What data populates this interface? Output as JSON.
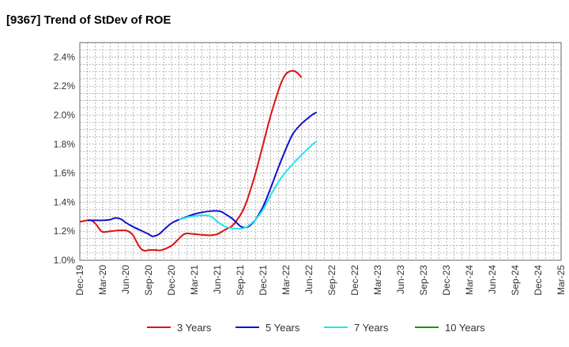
{
  "chart_data": {
    "type": "line",
    "title": "[9367]  Trend of StDev of ROE",
    "xlabel": "",
    "ylabel": "",
    "ylim": [
      1.0,
      2.5
    ],
    "y_ticks": [
      1.0,
      1.2,
      1.4,
      1.6,
      1.8,
      2.0,
      2.2,
      2.4
    ],
    "y_tick_labels": [
      "1.0%",
      "1.2%",
      "1.4%",
      "1.6%",
      "1.8%",
      "2.0%",
      "2.2%",
      "2.4%"
    ],
    "x_tick_labels": [
      "Dec-19",
      "Mar-20",
      "Jun-20",
      "Sep-20",
      "Dec-20",
      "Mar-21",
      "Jun-21",
      "Sep-21",
      "Dec-21",
      "Mar-22",
      "Jun-22",
      "Sep-22",
      "Dec-22",
      "Mar-23",
      "Jun-23",
      "Sep-23",
      "Dec-23",
      "Mar-24",
      "Jun-24",
      "Sep-24",
      "Dec-24",
      "Mar-25"
    ],
    "grid": true,
    "legend_position": "bottom",
    "series": [
      {
        "name": "3 Years",
        "color": "#dd1111",
        "points": [
          [
            0,
            1.265
          ],
          [
            1,
            1.275
          ],
          [
            1.5,
            1.275
          ],
          [
            2,
            1.255
          ],
          [
            2.5,
            1.22
          ],
          [
            3,
            1.195
          ],
          [
            4,
            1.2
          ],
          [
            5,
            1.205
          ],
          [
            6,
            1.205
          ],
          [
            6.5,
            1.195
          ],
          [
            7,
            1.17
          ],
          [
            7.5,
            1.12
          ],
          [
            8,
            1.08
          ],
          [
            8.5,
            1.065
          ],
          [
            9,
            1.07
          ],
          [
            10,
            1.07
          ],
          [
            10.5,
            1.068
          ],
          [
            11,
            1.075
          ],
          [
            12,
            1.1
          ],
          [
            13,
            1.15
          ],
          [
            13.5,
            1.175
          ],
          [
            14,
            1.185
          ],
          [
            15,
            1.18
          ],
          [
            16,
            1.175
          ],
          [
            17,
            1.172
          ],
          [
            18,
            1.18
          ],
          [
            19,
            1.21
          ],
          [
            20,
            1.24
          ],
          [
            21,
            1.31
          ],
          [
            21.5,
            1.36
          ],
          [
            22,
            1.43
          ],
          [
            23,
            1.6
          ],
          [
            24,
            1.8
          ],
          [
            25,
            2.0
          ],
          [
            26,
            2.17
          ],
          [
            26.5,
            2.24
          ],
          [
            27,
            2.285
          ],
          [
            27.5,
            2.302
          ],
          [
            28,
            2.305
          ],
          [
            28.5,
            2.29
          ],
          [
            29,
            2.26
          ]
        ]
      },
      {
        "name": "5 Years",
        "color": "#1111cc",
        "points": [
          [
            1,
            1.275
          ],
          [
            2,
            1.275
          ],
          [
            3,
            1.275
          ],
          [
            4,
            1.28
          ],
          [
            4.5,
            1.29
          ],
          [
            5,
            1.29
          ],
          [
            5.5,
            1.28
          ],
          [
            6,
            1.26
          ],
          [
            7,
            1.23
          ],
          [
            8,
            1.205
          ],
          [
            9,
            1.18
          ],
          [
            9.5,
            1.165
          ],
          [
            10,
            1.17
          ],
          [
            10.5,
            1.185
          ],
          [
            11,
            1.21
          ],
          [
            12,
            1.255
          ],
          [
            13,
            1.28
          ],
          [
            14,
            1.3
          ],
          [
            15,
            1.318
          ],
          [
            16,
            1.33
          ],
          [
            17,
            1.338
          ],
          [
            18,
            1.34
          ],
          [
            18.5,
            1.335
          ],
          [
            19,
            1.32
          ],
          [
            20,
            1.285
          ],
          [
            21,
            1.235
          ],
          [
            21.5,
            1.225
          ],
          [
            22,
            1.23
          ],
          [
            22.5,
            1.25
          ],
          [
            23,
            1.28
          ],
          [
            24,
            1.37
          ],
          [
            25,
            1.5
          ],
          [
            26,
            1.64
          ],
          [
            27,
            1.77
          ],
          [
            27.5,
            1.83
          ],
          [
            28,
            1.88
          ],
          [
            29,
            1.94
          ],
          [
            30,
            1.985
          ],
          [
            30.5,
            2.005
          ],
          [
            31,
            2.02
          ]
        ]
      },
      {
        "name": "7 Years",
        "color": "#22e5f2",
        "points": [
          [
            13,
            1.28
          ],
          [
            14,
            1.295
          ],
          [
            15,
            1.305
          ],
          [
            16,
            1.31
          ],
          [
            16.5,
            1.31
          ],
          [
            17,
            1.305
          ],
          [
            17.5,
            1.29
          ],
          [
            18,
            1.265
          ],
          [
            19,
            1.232
          ],
          [
            20,
            1.22
          ],
          [
            21,
            1.218
          ],
          [
            21.5,
            1.222
          ],
          [
            22,
            1.235
          ],
          [
            23,
            1.28
          ],
          [
            24,
            1.35
          ],
          [
            25,
            1.45
          ],
          [
            26,
            1.54
          ],
          [
            27,
            1.61
          ],
          [
            28,
            1.67
          ],
          [
            29,
            1.725
          ],
          [
            30,
            1.775
          ],
          [
            30.5,
            1.8
          ],
          [
            31,
            1.82
          ]
        ]
      },
      {
        "name": "10 Years",
        "color": "#119911",
        "points": []
      }
    ]
  }
}
